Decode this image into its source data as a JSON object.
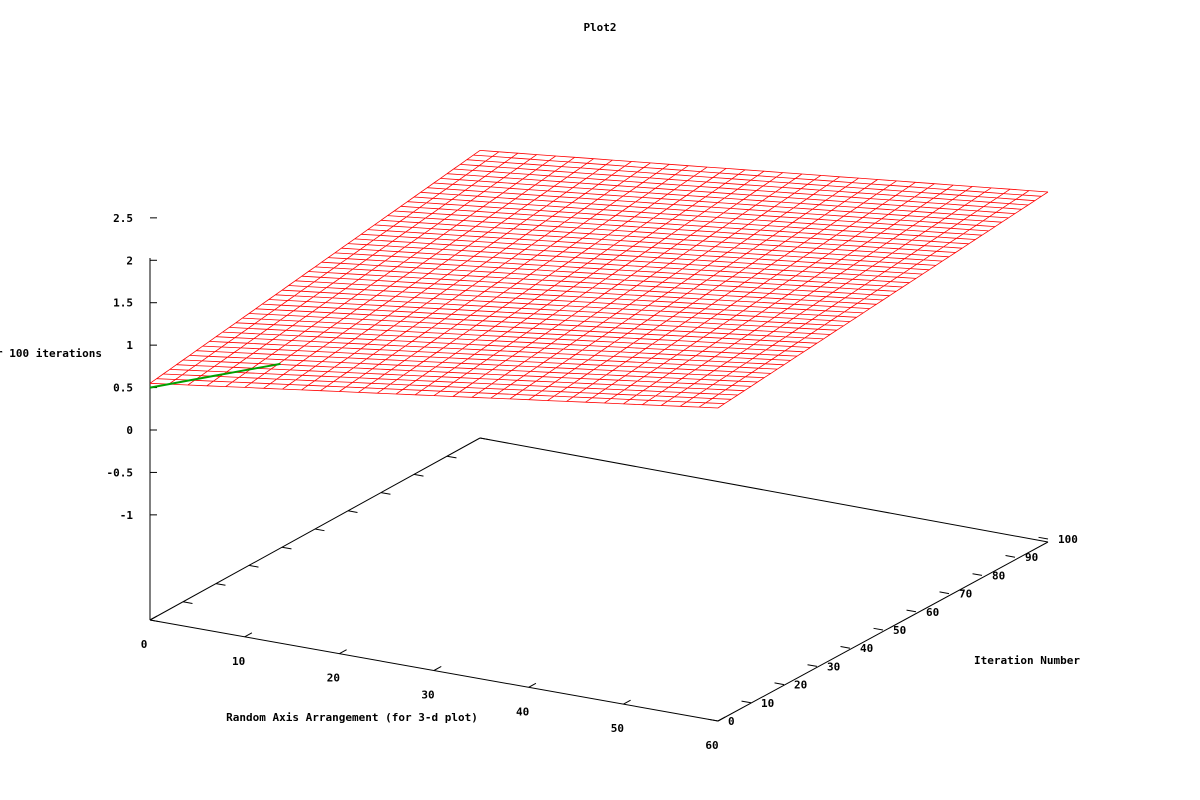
{
  "chart_data": {
    "type": "surface3d",
    "title": "Plot2",
    "xlabel": "Random Axis Arrangement (for 3-d plot)",
    "ylabel": "Iteration Number",
    "zlabel": "r 100 iterations",
    "x_ticks": [
      "0",
      "10",
      "20",
      "30",
      "40",
      "50",
      "60"
    ],
    "y_ticks": [
      "0",
      "10",
      "20",
      "30",
      "40",
      "50",
      "60",
      "70",
      "80",
      "90",
      "100"
    ],
    "z_ticks": [
      "2.5",
      "2",
      "1.5",
      "1",
      "0.5",
      "0",
      "-0.5",
      "-1"
    ],
    "xlim": [
      0,
      60
    ],
    "ylim": [
      0,
      100
    ],
    "zlim": [
      -1,
      2.5
    ],
    "surface_color": "#ff0000",
    "secondary_color": "#00a000",
    "surface_description": "approx z by (x,y)",
    "surface_corners": {
      "x0_y0": 0.55,
      "x0_y100": 1.15,
      "x60_y0": 1.45,
      "x60_y100": 1.85
    },
    "grid": false,
    "legend": "none"
  }
}
